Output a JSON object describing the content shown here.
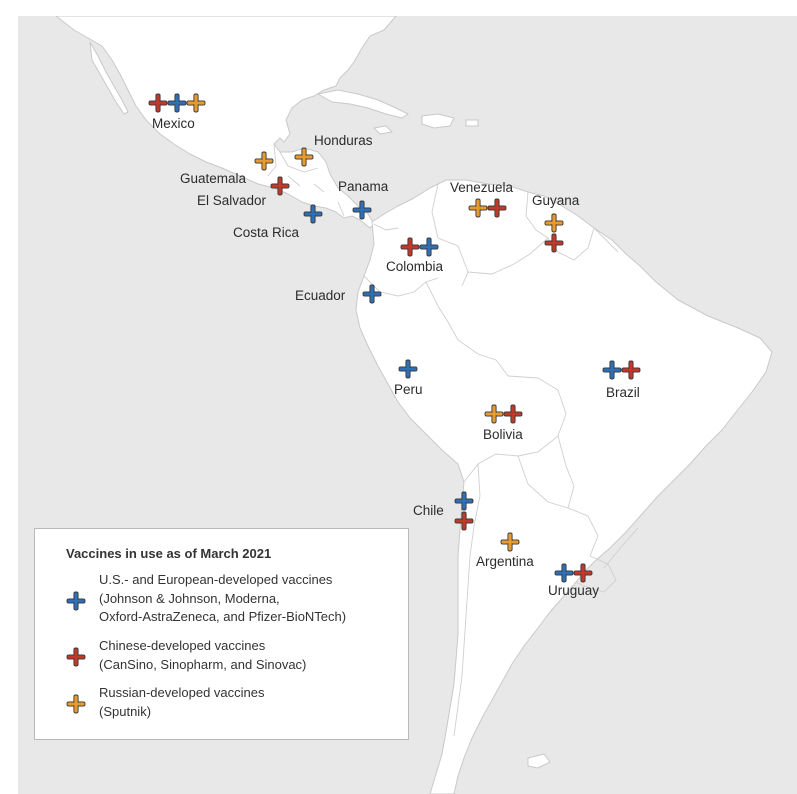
{
  "colors": {
    "us_eu": "#2e6fb5",
    "chinese": "#c0392b",
    "russian": "#e89a2c",
    "ocean": "#e8e8e8",
    "land": "#ffffff"
  },
  "legend": {
    "title": "Vaccines in use as of March 2021",
    "items": [
      {
        "type": "us_eu",
        "lines": [
          "U.S.- and European-developed vaccines",
          "(Johnson & Johnson, Moderna,",
          "Oxford-AstraZeneca, and Pfizer-BioNTech)"
        ]
      },
      {
        "type": "chinese",
        "lines": [
          "Chinese-developed vaccines",
          "(CanSino, Sinopharm, and Sinovac)"
        ]
      },
      {
        "type": "russian",
        "lines": [
          "Russian-developed vaccines",
          "(Sputnik)"
        ]
      }
    ]
  },
  "countries": [
    {
      "name": "Mexico",
      "vaccines": [
        "chinese",
        "us_eu",
        "russian"
      ]
    },
    {
      "name": "Honduras",
      "vaccines": [
        "russian"
      ]
    },
    {
      "name": "Guatemala",
      "vaccines": [
        "russian"
      ]
    },
    {
      "name": "El Salvador",
      "vaccines": [
        "chinese"
      ]
    },
    {
      "name": "Costa Rica",
      "vaccines": [
        "us_eu"
      ]
    },
    {
      "name": "Panama",
      "vaccines": [
        "us_eu"
      ]
    },
    {
      "name": "Venezuela",
      "vaccines": [
        "russian",
        "chinese"
      ]
    },
    {
      "name": "Guyana",
      "vaccines": [
        "russian",
        "chinese"
      ]
    },
    {
      "name": "Colombia",
      "vaccines": [
        "chinese",
        "us_eu"
      ]
    },
    {
      "name": "Ecuador",
      "vaccines": [
        "us_eu"
      ]
    },
    {
      "name": "Peru",
      "vaccines": [
        "us_eu"
      ]
    },
    {
      "name": "Brazil",
      "vaccines": [
        "us_eu",
        "chinese"
      ]
    },
    {
      "name": "Bolivia",
      "vaccines": [
        "russian",
        "chinese"
      ]
    },
    {
      "name": "Chile",
      "vaccines": [
        "us_eu",
        "chinese"
      ]
    },
    {
      "name": "Argentina",
      "vaccines": [
        "russian"
      ]
    },
    {
      "name": "Uruguay",
      "vaccines": [
        "us_eu",
        "chinese"
      ]
    }
  ]
}
